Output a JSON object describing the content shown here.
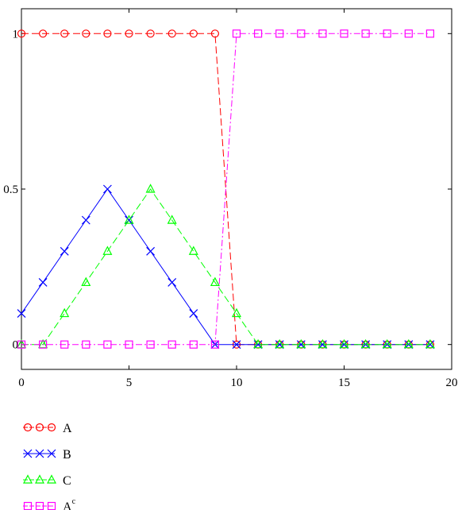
{
  "chart_data": {
    "type": "line",
    "title": "",
    "xlabel": "",
    "ylabel": "",
    "xlim": [
      0,
      20
    ],
    "ylim": [
      -0.08,
      1.08
    ],
    "x_ticks": [
      0,
      5,
      10,
      15,
      20
    ],
    "y_ticks": [
      0,
      0.5,
      1
    ],
    "x_tick_labels": [
      "0",
      "5",
      "10",
      "15",
      "20"
    ],
    "y_tick_labels": [
      "0",
      "0.5",
      "1"
    ],
    "grid": false,
    "legend_position": "bottom-left",
    "x": [
      0,
      1,
      2,
      3,
      4,
      5,
      6,
      7,
      8,
      9,
      10,
      11,
      12,
      13,
      14,
      15,
      16,
      17,
      18,
      19
    ],
    "series": [
      {
        "name": "A",
        "color": "#ff0000",
        "marker": "circle",
        "dash": "dash",
        "values": [
          1,
          1,
          1,
          1,
          1,
          1,
          1,
          1,
          1,
          1,
          0,
          0,
          0,
          0,
          0,
          0,
          0,
          0,
          0,
          0
        ]
      },
      {
        "name": "B",
        "color": "#0000ff",
        "marker": "x",
        "dash": "solid",
        "values": [
          0.1,
          0.2,
          0.3,
          0.4,
          0.5,
          0.4,
          0.3,
          0.2,
          0.1,
          0,
          0,
          0,
          0,
          0,
          0,
          0,
          0,
          0,
          0,
          0
        ]
      },
      {
        "name": "C",
        "color": "#00ff00",
        "marker": "triangle",
        "dash": "dash",
        "values": [
          0,
          0,
          0.1,
          0.2,
          0.3,
          0.4,
          0.5,
          0.4,
          0.3,
          0.2,
          0.1,
          0,
          0,
          0,
          0,
          0,
          0,
          0,
          0,
          0
        ]
      },
      {
        "name": "A",
        "superscript": "c",
        "color": "#ff00ff",
        "marker": "square",
        "dash": "dashdot",
        "values": [
          0,
          0,
          0,
          0,
          0,
          0,
          0,
          0,
          0,
          0,
          1,
          1,
          1,
          1,
          1,
          1,
          1,
          1,
          1,
          1
        ]
      }
    ]
  }
}
